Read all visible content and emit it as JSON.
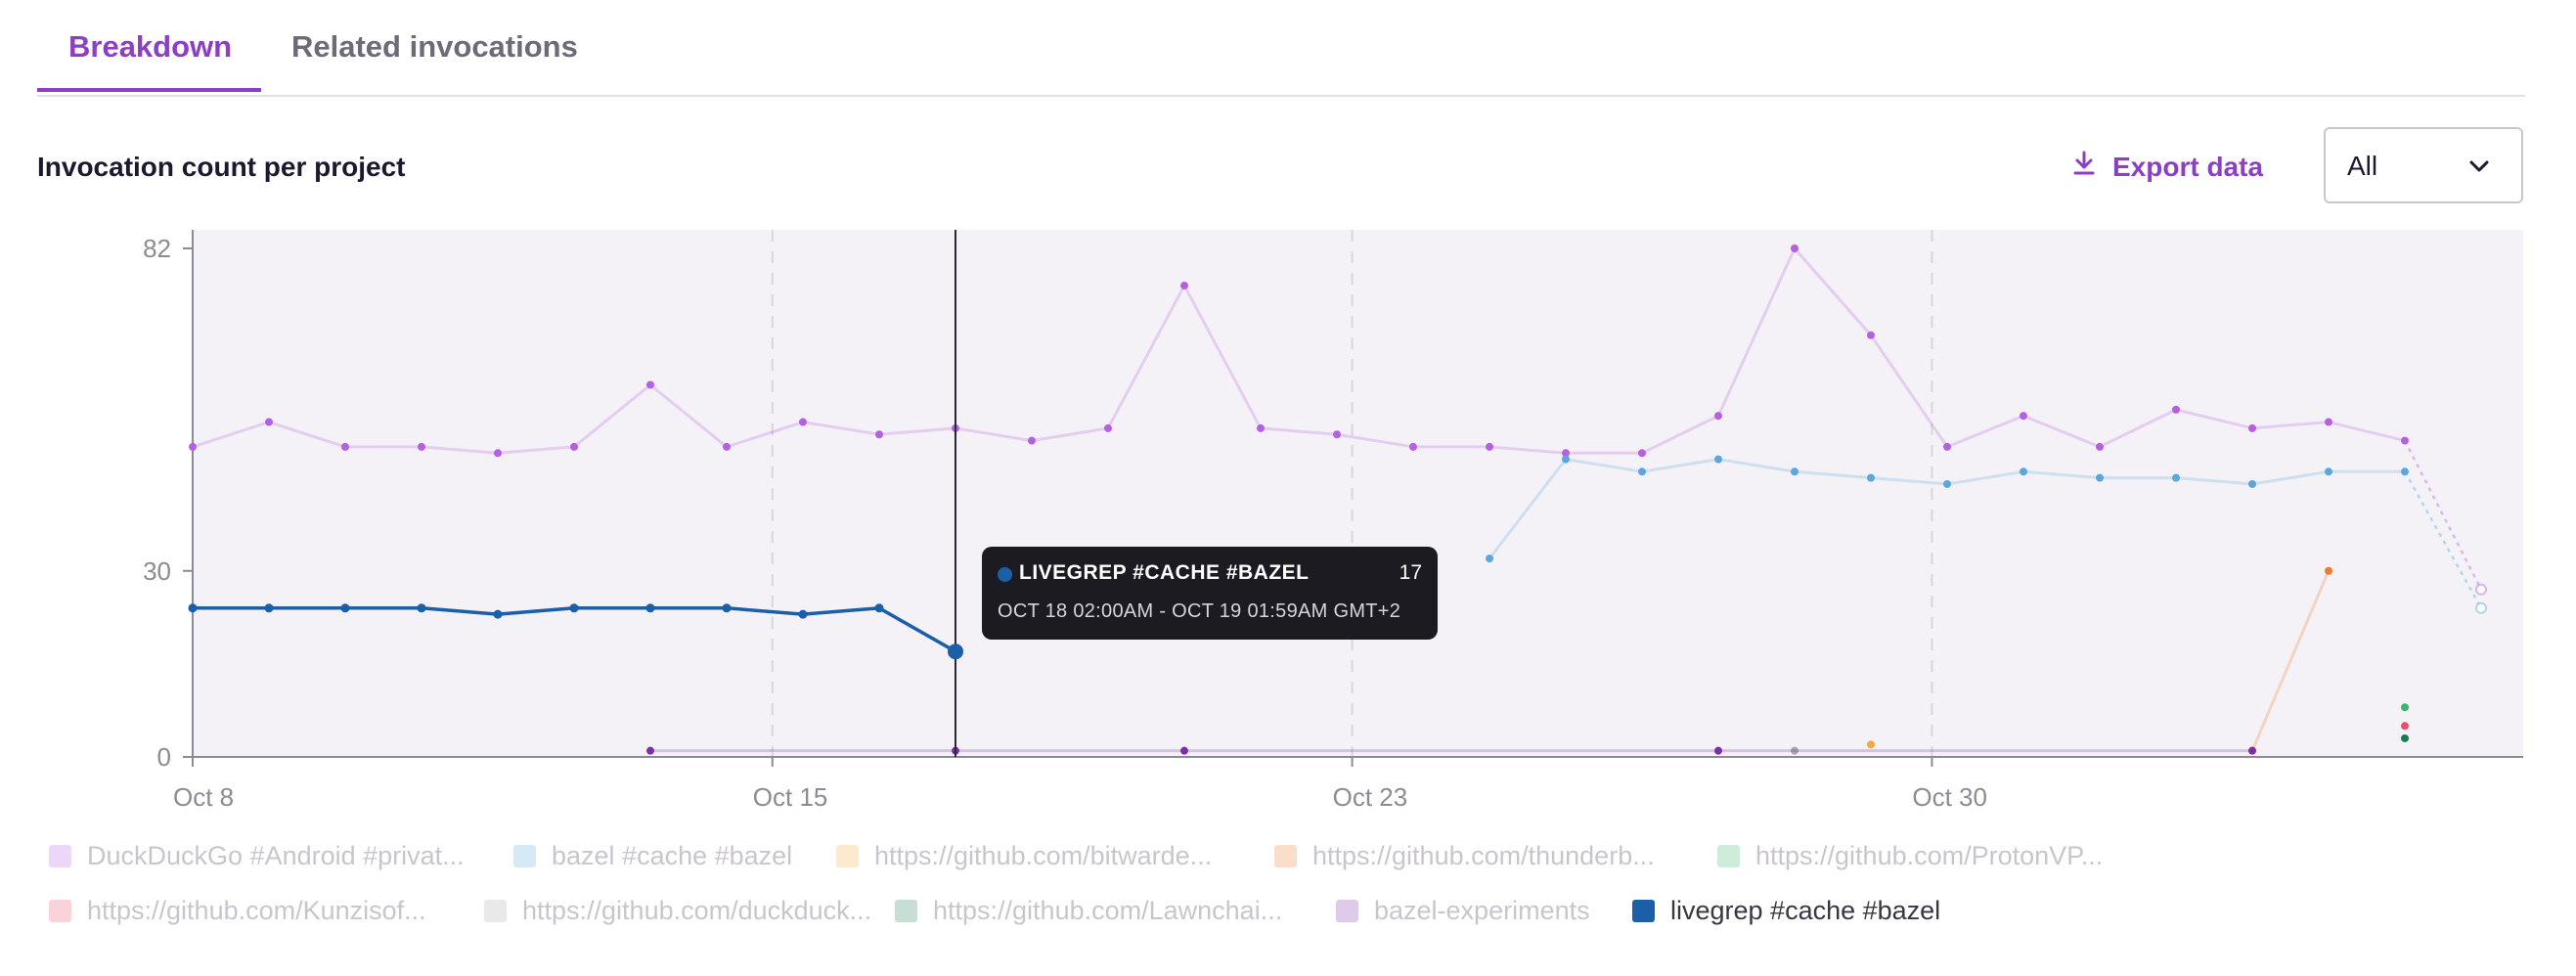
{
  "tabs": [
    {
      "label": "Breakdown",
      "active": true
    },
    {
      "label": "Related invocations",
      "active": false
    }
  ],
  "section_title": "Invocation count per project",
  "export_label": "Export data",
  "filter": {
    "selected": "All"
  },
  "tooltip": {
    "series": "LIVEGREP #CACHE #BAZEL",
    "value": "17",
    "range": "OCT 18 02:00AM - OCT 19 01:59AM GMT+2",
    "color": "#1a5fa8"
  },
  "chart_data": {
    "type": "line",
    "ylim": [
      0,
      82
    ],
    "yticks": [
      0,
      30,
      82
    ],
    "x_start": "Oct 8",
    "x_ticks": [
      {
        "label": "Oct 8",
        "day": 0
      },
      {
        "label": "Oct 15",
        "day": 7.6
      },
      {
        "label": "Oct 23",
        "day": 15.2
      },
      {
        "label": "Oct 30",
        "day": 22.8
      }
    ],
    "hover_day": 10,
    "series": [
      {
        "name": "DuckDuckGo #Android #privat...",
        "color": "#b560e0",
        "highlight": false,
        "points": [
          [
            0,
            50
          ],
          [
            1,
            54
          ],
          [
            2,
            50
          ],
          [
            3,
            50
          ],
          [
            4,
            49
          ],
          [
            5,
            50
          ],
          [
            6,
            60
          ],
          [
            7,
            50
          ],
          [
            8,
            54
          ],
          [
            9,
            52
          ],
          [
            10,
            53
          ],
          [
            11,
            51
          ],
          [
            12,
            53
          ],
          [
            13,
            76
          ],
          [
            14,
            53
          ],
          [
            15,
            52
          ],
          [
            16,
            50
          ],
          [
            17,
            50
          ],
          [
            18,
            49
          ],
          [
            19,
            49
          ],
          [
            20,
            55
          ],
          [
            21,
            82
          ],
          [
            22,
            68
          ],
          [
            23,
            50
          ],
          [
            24,
            55
          ],
          [
            25,
            50
          ],
          [
            26,
            56
          ],
          [
            27,
            53
          ],
          [
            28,
            54
          ],
          [
            29,
            51
          ]
        ],
        "projected": [
          [
            29,
            51
          ],
          [
            30,
            27
          ]
        ]
      },
      {
        "name": "bazel #cache #bazel",
        "color": "#5aa7df",
        "highlight": false,
        "points": [
          [
            17,
            32
          ],
          [
            18,
            48
          ],
          [
            19,
            46
          ],
          [
            20,
            48
          ],
          [
            21,
            46
          ],
          [
            22,
            45
          ],
          [
            23,
            44
          ],
          [
            24,
            46
          ],
          [
            25,
            45
          ],
          [
            26,
            45
          ],
          [
            27,
            44
          ],
          [
            28,
            46
          ],
          [
            29,
            46
          ]
        ],
        "projected": [
          [
            29,
            46
          ],
          [
            30,
            24
          ]
        ]
      },
      {
        "name": "https://github.com/bitwarde...",
        "color": "#f2a93b",
        "highlight": false,
        "points": [
          [
            22,
            2
          ]
        ],
        "projected": []
      },
      {
        "name": "https://github.com/thunderb...",
        "color": "#f07b2c",
        "highlight": false,
        "points": [
          [
            27,
            1
          ],
          [
            28,
            30
          ]
        ],
        "projected": []
      },
      {
        "name": "https://github.com/ProtonVP...",
        "color": "#3ab56c",
        "highlight": false,
        "points": [
          [
            29,
            8
          ]
        ],
        "projected": []
      },
      {
        "name": "https://github.com/Kunzisof...",
        "color": "#ec4d6c",
        "highlight": false,
        "points": [
          [
            29,
            5
          ]
        ],
        "projected": []
      },
      {
        "name": "https://github.com/duckduck...",
        "color": "#a8a8a8",
        "highlight": false,
        "points": [
          [
            21,
            1
          ]
        ],
        "projected": []
      },
      {
        "name": "https://github.com/Lawnchai...",
        "color": "#1a7a55",
        "highlight": false,
        "points": [
          [
            29,
            3
          ]
        ],
        "projected": []
      },
      {
        "name": "bazel-experiments",
        "color": "#7a2fa8",
        "highlight": false,
        "points": [
          [
            6,
            1
          ],
          [
            10,
            1
          ],
          [
            13,
            1
          ],
          [
            20,
            1
          ],
          [
            27,
            1
          ]
        ],
        "projected": []
      },
      {
        "name": "livegrep #cache #bazel",
        "color": "#1a5fa8",
        "highlight": true,
        "points": [
          [
            0,
            24
          ],
          [
            1,
            24
          ],
          [
            2,
            24
          ],
          [
            3,
            24
          ],
          [
            4,
            23
          ],
          [
            5,
            24
          ],
          [
            6,
            24
          ],
          [
            7,
            24
          ],
          [
            8,
            23
          ],
          [
            9,
            24
          ],
          [
            10,
            17
          ]
        ],
        "projected": []
      }
    ]
  }
}
